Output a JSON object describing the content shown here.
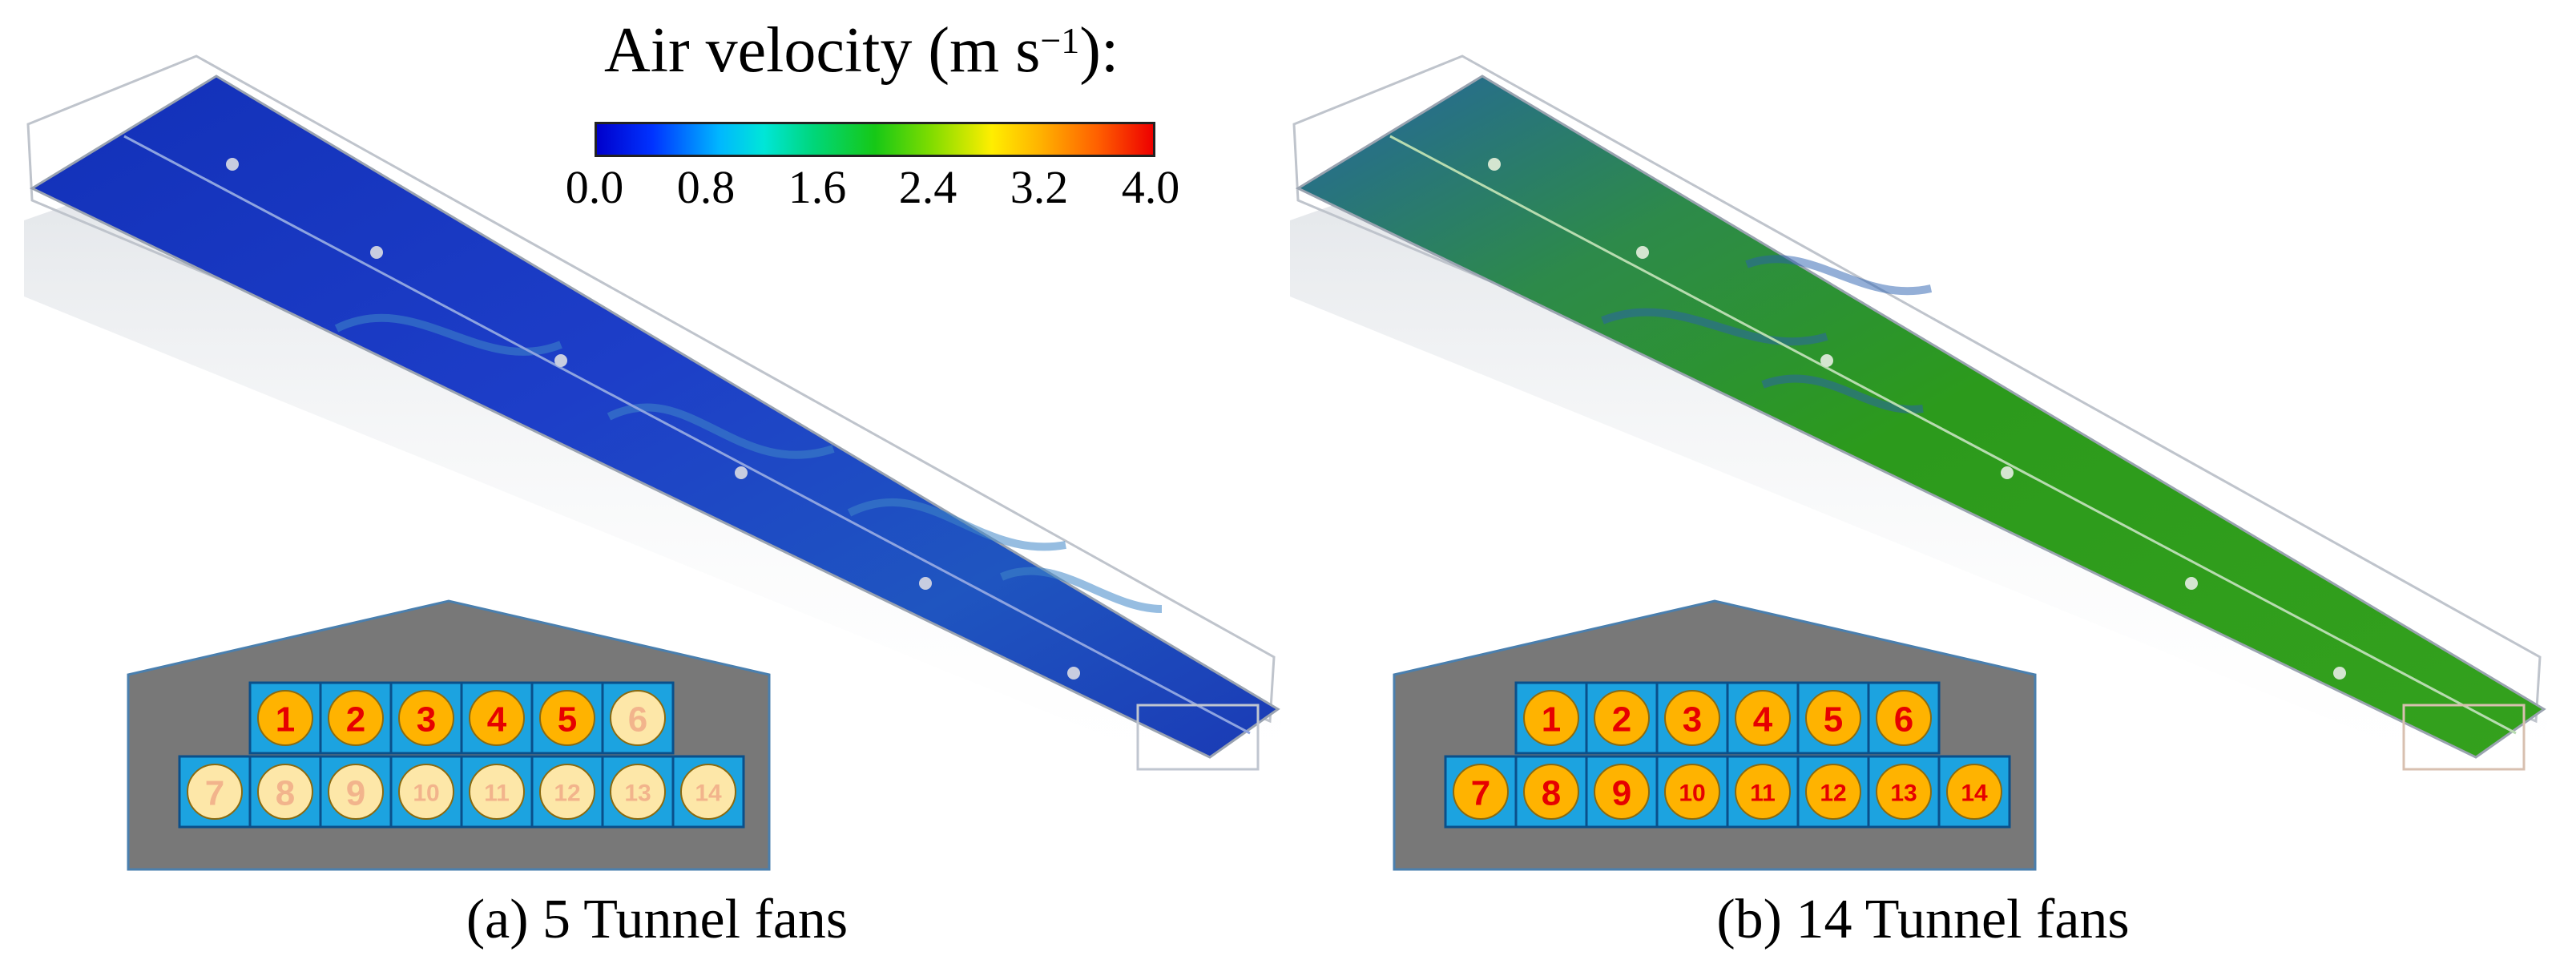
{
  "legend": {
    "title": "Air velocity (m s",
    "title_sup": "−1",
    "title_end": "):",
    "ticks": [
      "0.0",
      "0.8",
      "1.6",
      "2.4",
      "3.2",
      "4.0"
    ],
    "colors": [
      "#0000cc",
      "#00b7ff",
      "#16c816",
      "#ffee00",
      "#ff6000",
      "#ee0000"
    ]
  },
  "panels": [
    {
      "caption": "(a) 5 Tunnel fans",
      "field_color": "#1a3fc4",
      "fans_on": 5
    },
    {
      "caption": "(b) 14 Tunnel fans",
      "field_color": "#2f9a1e",
      "fans_on": 14
    }
  ],
  "fans": {
    "top_row": [
      "1",
      "2",
      "3",
      "4",
      "5",
      "6"
    ],
    "bottom_row": [
      "7",
      "8",
      "9",
      "10",
      "11",
      "12",
      "13",
      "14"
    ],
    "active_fill": "#ffb300",
    "active_text": "#e60000",
    "inactive_fill": "#fde7a8",
    "inactive_text": "#f2b48c",
    "cell_color": "#1ca3e0",
    "wall_color": "#787878"
  }
}
